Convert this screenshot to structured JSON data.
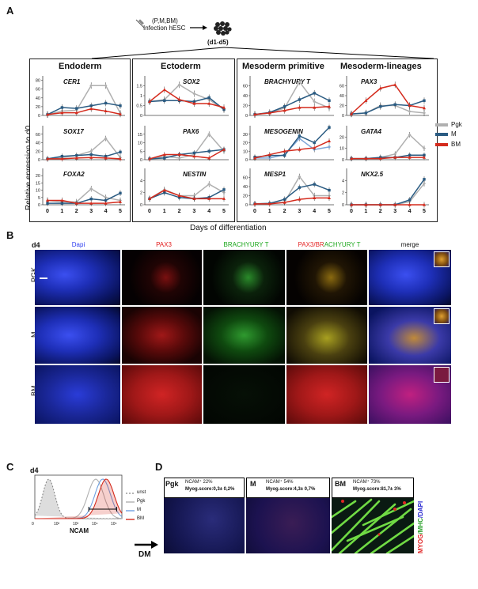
{
  "panelA": {
    "label": "A",
    "schematic": {
      "vectors": "(P,M,BM)",
      "infection": "Infection hESC",
      "days": "(d1-d5)"
    },
    "groups": {
      "endoderm": "Endoderm",
      "ectoderm": "Ectoderm",
      "mesoderm_primitive": "Mesoderm primitive",
      "mesoderm_lineages": "Mesoderm-lineages"
    },
    "genes": [
      "CER1",
      "SOX17",
      "FOXA2",
      "SOX2",
      "PAX6",
      "NESTIN",
      "BRACHYURY T",
      "MESOGENIN",
      "MESP1",
      "PAX3",
      "GATA4",
      "NKX2.5"
    ],
    "ylabel": "Relative epression to d0",
    "xlabel": "Days of differentiation",
    "xticks": [
      "0",
      "1",
      "2",
      "3",
      "4",
      "5"
    ],
    "legend": [
      {
        "name": "Pgk",
        "color": "#b0b0b0"
      },
      {
        "name": "M",
        "color": "#2a5b82"
      },
      {
        "name": "BM",
        "color": "#d42a1c"
      }
    ]
  },
  "chart_data": [
    {
      "type": "line",
      "title": "CER1",
      "x": [
        0,
        1,
        2,
        3,
        4,
        5
      ],
      "ylim": [
        0,
        90
      ],
      "yticks": [
        0,
        20,
        40,
        60,
        80
      ],
      "series": [
        {
          "name": "Pgk",
          "values": [
            2,
            10,
            12,
            68,
            68,
            5
          ]
        },
        {
          "name": "M",
          "values": [
            2,
            18,
            16,
            22,
            28,
            22
          ]
        },
        {
          "name": "BM",
          "values": [
            2,
            6,
            6,
            15,
            10,
            3
          ]
        }
      ]
    },
    {
      "type": "line",
      "title": "SOX17",
      "x": [
        0,
        1,
        2,
        3,
        4,
        5
      ],
      "ylim": [
        0,
        80
      ],
      "yticks": [
        0,
        20,
        40,
        60
      ],
      "series": [
        {
          "name": "Pgk",
          "values": [
            2,
            5,
            10,
            20,
            50,
            5
          ]
        },
        {
          "name": "M",
          "values": [
            2,
            8,
            10,
            12,
            8,
            18
          ]
        },
        {
          "name": "BM",
          "values": [
            2,
            2,
            4,
            5,
            4,
            2
          ]
        }
      ]
    },
    {
      "type": "line",
      "title": "FOXA2",
      "x": [
        0,
        1,
        2,
        3,
        4,
        5
      ],
      "ylim": [
        0,
        25
      ],
      "yticks": [
        0,
        5,
        10,
        15,
        20
      ],
      "series": [
        {
          "name": "Pgk",
          "values": [
            3,
            2,
            2,
            11,
            5,
            3
          ]
        },
        {
          "name": "M",
          "values": [
            1,
            1,
            1,
            4,
            3,
            8
          ]
        },
        {
          "name": "BM",
          "values": [
            3,
            3,
            1,
            1,
            1,
            2
          ]
        }
      ]
    },
    {
      "type": "line",
      "title": "SOX2",
      "x": [
        0,
        1,
        2,
        3,
        4,
        5
      ],
      "ylim": [
        0,
        2
      ],
      "yticks": [
        0,
        0.5,
        1,
        1.5
      ],
      "series": [
        {
          "name": "Pgk",
          "values": [
            0.7,
            0.8,
            1.55,
            1.1,
            0.8,
            0.3
          ]
        },
        {
          "name": "M",
          "values": [
            0.7,
            0.75,
            0.75,
            0.7,
            0.9,
            0.3
          ]
        },
        {
          "name": "BM",
          "values": [
            0.7,
            1.3,
            0.8,
            0.6,
            0.6,
            0.4
          ]
        }
      ]
    },
    {
      "type": "line",
      "title": "PAX6",
      "x": [
        0,
        1,
        2,
        3,
        4,
        5
      ],
      "ylim": [
        0,
        20
      ],
      "yticks": [
        0,
        5,
        10,
        15
      ],
      "series": [
        {
          "name": "Pgk",
          "values": [
            0.5,
            2,
            1,
            3,
            15,
            5
          ]
        },
        {
          "name": "M",
          "values": [
            0.5,
            1,
            3,
            4,
            5,
            6
          ]
        },
        {
          "name": "BM",
          "values": [
            0.5,
            3,
            3,
            2,
            1,
            6
          ]
        }
      ]
    },
    {
      "type": "line",
      "title": "NESTIN",
      "x": [
        0,
        1,
        2,
        3,
        4,
        5
      ],
      "ylim": [
        0,
        6
      ],
      "yticks": [
        0,
        2,
        4
      ],
      "series": [
        {
          "name": "Pgk",
          "values": [
            1,
            2.5,
            1.5,
            1.5,
            3.4,
            2
          ]
        },
        {
          "name": "M",
          "values": [
            1,
            2,
            1.2,
            1,
            1.2,
            2.5
          ]
        },
        {
          "name": "BM",
          "values": [
            1,
            2.4,
            1.5,
            1,
            1,
            1
          ]
        }
      ]
    },
    {
      "type": "line",
      "title": "BRACHYURY T",
      "x": [
        0,
        1,
        2,
        3,
        4,
        5
      ],
      "ylim": [
        0,
        80
      ],
      "yticks": [
        0,
        20,
        40,
        60
      ],
      "series": [
        {
          "name": "Pgk",
          "values": [
            2,
            5,
            15,
            68,
            28,
            15
          ]
        },
        {
          "name": "M",
          "values": [
            2,
            6,
            18,
            32,
            45,
            30
          ]
        },
        {
          "name": "BM",
          "values": [
            2,
            5,
            10,
            16,
            16,
            18
          ]
        }
      ]
    },
    {
      "type": "line",
      "title": "MESOGENIN",
      "x": [
        0,
        1,
        2,
        3,
        4,
        5
      ],
      "ylim": [
        0,
        40
      ],
      "yticks": [
        0,
        10,
        20,
        30
      ],
      "series": [
        {
          "name": "Pgk",
          "values": [
            2,
            2,
            6,
            25,
            12,
            15
          ]
        },
        {
          "name": "M",
          "values": [
            3,
            5,
            5,
            28,
            20,
            38
          ]
        },
        {
          "name": "BM",
          "values": [
            2,
            6,
            10,
            12,
            14,
            22
          ]
        }
      ]
    },
    {
      "type": "line",
      "title": "MESP1",
      "x": [
        0,
        1,
        2,
        3,
        4,
        5
      ],
      "ylim": [
        0,
        80
      ],
      "yticks": [
        0,
        20,
        40,
        60
      ],
      "series": [
        {
          "name": "Pgk",
          "values": [
            2,
            3,
            6,
            62,
            20,
            20
          ]
        },
        {
          "name": "M",
          "values": [
            2,
            3,
            12,
            38,
            45,
            32
          ]
        },
        {
          "name": "BM",
          "values": [
            2,
            2,
            5,
            12,
            15,
            15
          ]
        }
      ]
    },
    {
      "type": "line",
      "title": "PAX3",
      "x": [
        0,
        1,
        2,
        3,
        4,
        5
      ],
      "ylim": [
        0,
        80
      ],
      "yticks": [
        0,
        20,
        40,
        60
      ],
      "series": [
        {
          "name": "Pgk",
          "values": [
            3,
            5,
            20,
            20,
            8,
            5
          ]
        },
        {
          "name": "M",
          "values": [
            3,
            5,
            18,
            22,
            20,
            30
          ]
        },
        {
          "name": "BM",
          "values": [
            3,
            30,
            55,
            62,
            20,
            15
          ]
        }
      ]
    },
    {
      "type": "line",
      "title": "GATA4",
      "x": [
        0,
        1,
        2,
        3,
        4,
        5
      ],
      "ylim": [
        0,
        30
      ],
      "yticks": [
        0,
        10,
        20
      ],
      "series": [
        {
          "name": "Pgk",
          "values": [
            1,
            1,
            2,
            5,
            22,
            10
          ]
        },
        {
          "name": "M",
          "values": [
            1,
            1,
            2,
            2,
            4,
            4
          ]
        },
        {
          "name": "BM",
          "values": [
            1,
            1,
            1,
            2,
            2,
            2
          ]
        }
      ]
    },
    {
      "type": "line",
      "title": "NKX2.5",
      "x": [
        0,
        1,
        2,
        3,
        4,
        5
      ],
      "ylim": [
        0,
        6
      ],
      "yticks": [
        0,
        2,
        4
      ],
      "series": [
        {
          "name": "Pgk",
          "values": [
            0,
            0,
            0,
            0,
            0.5,
            3.5
          ]
        },
        {
          "name": "M",
          "values": [
            0,
            0,
            0,
            0,
            0.8,
            4.2
          ]
        },
        {
          "name": "BM",
          "values": [
            0,
            0,
            0,
            0,
            0,
            0
          ]
        }
      ]
    },
    {
      "type": "area",
      "title": "NCAM",
      "xlabel": "NCAM",
      "xticks": [
        "0",
        "10²",
        "10³",
        "10⁴",
        "10⁵"
      ],
      "series": [
        {
          "name": "unst",
          "peak": 0.8
        },
        {
          "name": "Pgk",
          "peak": 3.5
        },
        {
          "name": "M",
          "peak": 3.9
        },
        {
          "name": "BM",
          "peak": 4.1
        }
      ]
    }
  ],
  "panelB": {
    "label": "B",
    "day": "d4",
    "columns": [
      "Dapi",
      "PAX3",
      "BRACHYURY T",
      "PAX3/BRACHYURY T",
      "merge"
    ],
    "rows": [
      "PGK",
      "M",
      "BM"
    ]
  },
  "panelC": {
    "label": "C",
    "day": "d4",
    "legend": [
      "unst",
      "Pgk",
      "M",
      "BM"
    ],
    "xlabel": "NCAM",
    "arrow": "DM"
  },
  "panelD": {
    "label": "D",
    "panels": [
      {
        "name": "Pgk",
        "ncam": "NCAM⁺ 22%",
        "score": "Myog.score:0,3± 0,2%"
      },
      {
        "name": "M",
        "ncam": "NCAM⁺ 54%",
        "score": "Myog.score:4,3± 0,7%"
      },
      {
        "name": "BM",
        "ncam": "NCAM⁺ 73%",
        "score": "Myog.score:81,7± 3%"
      }
    ],
    "side": [
      "MYOG",
      "/MHC",
      "/DAPI"
    ]
  },
  "colors": {
    "pgk": "#b0b0b0",
    "m": "#2a5b82",
    "bm": "#d42a1c",
    "m_light": "#7fa7d8"
  }
}
